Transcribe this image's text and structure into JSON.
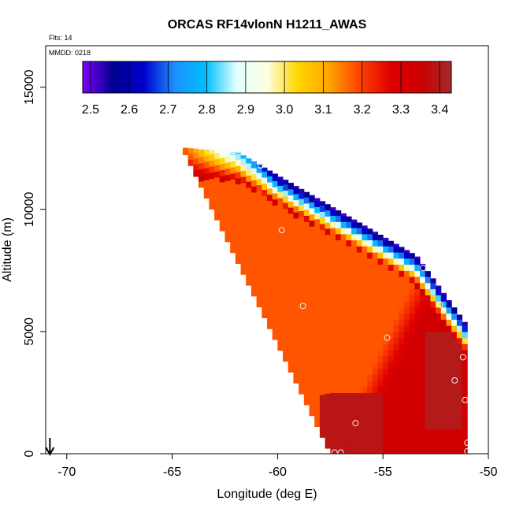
{
  "chart_data": {
    "type": "heatmap",
    "title": "ORCAS RF14vlonN H1211_AWAS",
    "flts_label": "Flts: 14",
    "mmdd_label": "MMDD: 0218",
    "xlabel": "Longitude (deg E)",
    "ylabel": "Altitude (m)",
    "xlim": [
      -71,
      -50
    ],
    "ylim": [
      0,
      16700
    ],
    "xticks": [
      -70,
      -65,
      -60,
      -55,
      -50
    ],
    "yticks": [
      0,
      5000,
      10000,
      15000
    ],
    "colorbar": {
      "min": 2.48,
      "max": 3.43,
      "ticks": [
        2.5,
        2.6,
        2.7,
        2.8,
        2.9,
        3.0,
        3.1,
        3.2,
        3.3,
        3.4
      ],
      "tick_labels": [
        "2.5",
        "2.6",
        "2.7",
        "2.8",
        "2.9",
        "3.0",
        "3.1",
        "3.2",
        "3.3",
        "3.4"
      ],
      "stops": [
        "#7F00FF",
        "#00008B",
        "#0000CD",
        "#1E90FF",
        "#00BFFF",
        "#E0FFFF",
        "#FFFFE0",
        "#FFD700",
        "#FFA500",
        "#FF4500",
        "#E00000",
        "#CC0000",
        "#A52A2A"
      ]
    },
    "field": {
      "lon_step": 0.25,
      "alt_step": 250,
      "value_range": [
        2.5,
        3.42
      ]
    },
    "sample_points": [
      {
        "lon": -62.1,
        "alt": 12400
      },
      {
        "lon": -63.3,
        "alt": 12450
      },
      {
        "lon": -60.8,
        "alt": 11800
      },
      {
        "lon": -59.8,
        "alt": 9150
      },
      {
        "lon": -53.1,
        "alt": 7600
      },
      {
        "lon": -58.8,
        "alt": 6050
      },
      {
        "lon": -52.3,
        "alt": 6100
      },
      {
        "lon": -51.3,
        "alt": 5950
      },
      {
        "lon": -54.8,
        "alt": 4750
      },
      {
        "lon": -51.2,
        "alt": 3950
      },
      {
        "lon": -51.6,
        "alt": 3000
      },
      {
        "lon": -51.1,
        "alt": 2200
      },
      {
        "lon": -56.3,
        "alt": 1250
      },
      {
        "lon": -51.0,
        "alt": 450
      },
      {
        "lon": -51.0,
        "alt": 100
      },
      {
        "lon": -57.0,
        "alt": 50
      },
      {
        "lon": -57.3,
        "alt": 50
      }
    ],
    "direction_arrow": {
      "lon": -70.8,
      "direction": "down"
    }
  }
}
